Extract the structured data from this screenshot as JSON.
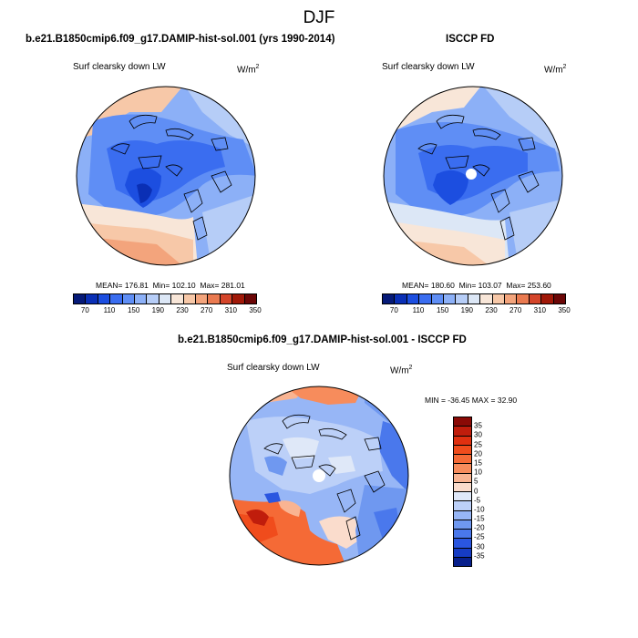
{
  "figure": {
    "title": "DJF"
  },
  "panels": {
    "model": {
      "title": "b.e21.B1850cmip6.f09_g17.DAMIP-hist-sol.001 (yrs 1990-2014)",
      "variable": "Surf clearsky down LW",
      "units_base": "W/m",
      "units_exp": "2",
      "mean_text": "MEAN= 176.81",
      "min_text": "Min= 102.10",
      "max_text": "Max= 281.01"
    },
    "obs": {
      "title": "ISCCP FD",
      "variable": "Surf clearsky down LW",
      "units_base": "W/m",
      "units_exp": "2",
      "mean_text": "MEAN= 180.60",
      "min_text": "Min= 103.07",
      "max_text": "Max= 253.60"
    },
    "diff": {
      "title": "b.e21.B1850cmip6.f09_g17.DAMIP-hist-sol.001 - ISCCP FD",
      "variable": "Surf clearsky down LW",
      "units_base": "W/m",
      "units_exp": "2",
      "minmax_text": "MIN = -36.45 MAX =  32.90"
    }
  },
  "colorbars": {
    "absolute": {
      "labels": [
        "70",
        "110",
        "150",
        "190",
        "230",
        "270",
        "310",
        "350"
      ],
      "colors": [
        "#061a78",
        "#0a2fb5",
        "#1c4ee0",
        "#3a6df0",
        "#5f8ef5",
        "#8cb0f7",
        "#b6cdf7",
        "#dce7f6",
        "#f8e6d8",
        "#f7c8a8",
        "#f3a47c",
        "#ea7a50",
        "#d4452a",
        "#a01808",
        "#6b0606"
      ]
    },
    "difference": {
      "labels": [
        "35",
        "30",
        "25",
        "20",
        "15",
        "10",
        "5",
        "0",
        "-5",
        "-10",
        "-15",
        "-20",
        "-25",
        "-30",
        "-35"
      ],
      "colors": [
        "#8a0a06",
        "#c01d0c",
        "#e03010",
        "#f04c1c",
        "#f56a36",
        "#f78c5c",
        "#f9b492",
        "#fadccc",
        "#dfe8f8",
        "#bcd0f8",
        "#97b6f6",
        "#6f98f0",
        "#4a78ec",
        "#2a56e0",
        "#163cc4",
        "#08208c"
      ]
    }
  }
}
